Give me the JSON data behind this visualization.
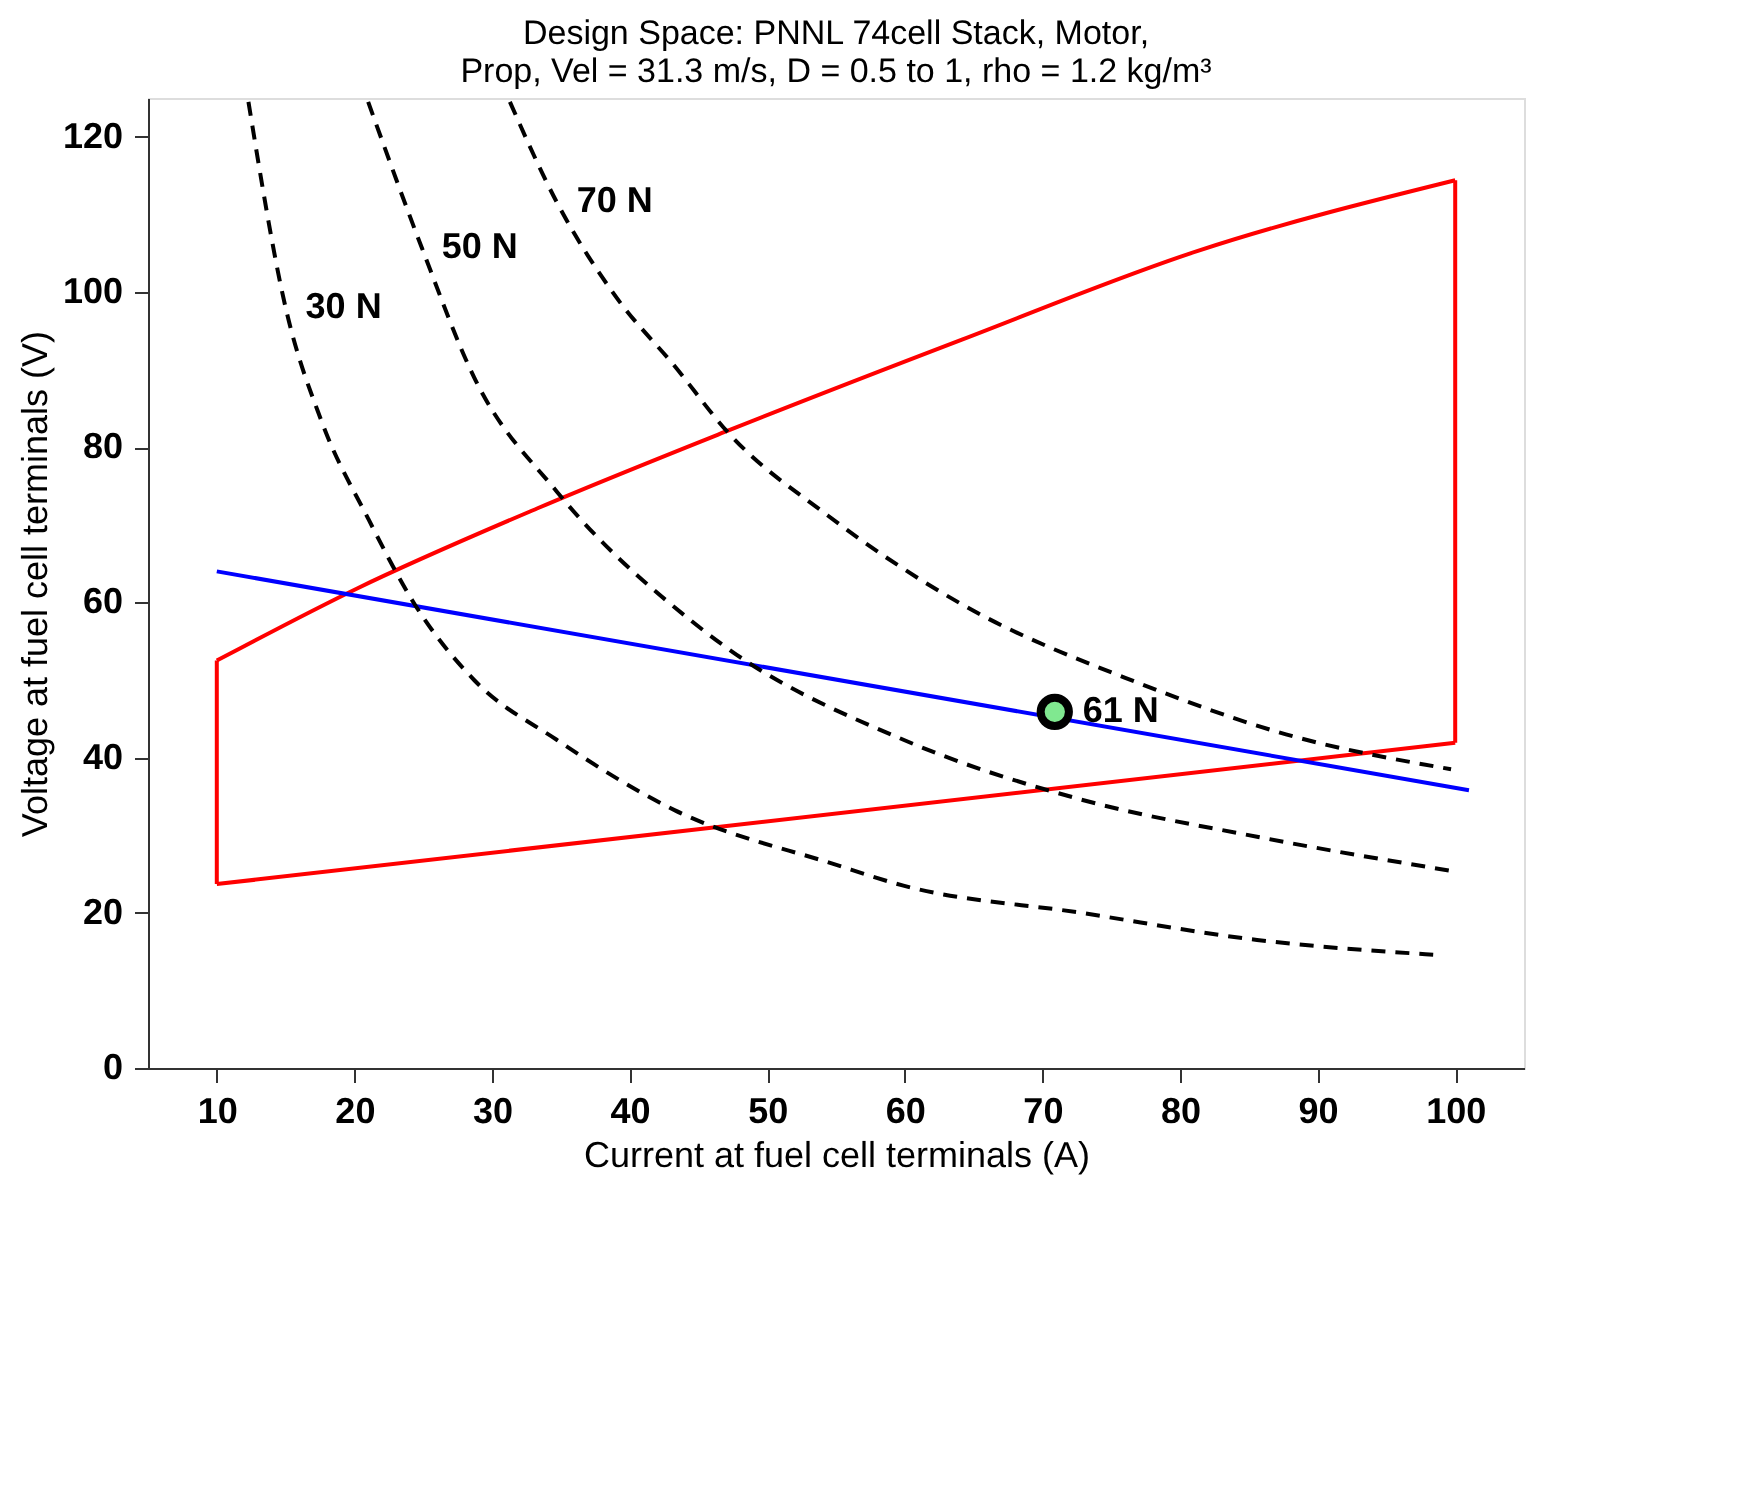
{
  "chart_data": {
    "type": "line",
    "title": [
      "Design Space: PNNL 74cell Stack, Motor,",
      "Prop, Vel = 31.3 m/s, D = 0.5 to 1, rho = 1.2 kg/m³"
    ],
    "xlabel": "Current at fuel cell terminals (A)",
    "ylabel": "Voltage at fuel cell terminals (V)",
    "xlim": [
      5,
      105
    ],
    "xticks": [
      10,
      20,
      30,
      40,
      50,
      60,
      70,
      80,
      90,
      100
    ],
    "ylim": [
      0,
      125
    ],
    "yticks": [
      0,
      20,
      40,
      60,
      80,
      100,
      120
    ],
    "grid": false,
    "series": [
      {
        "color": "#ff0000",
        "line_style": "solid",
        "x": [
          10,
          100
        ],
        "values": [
          23.7,
          41.9
        ]
      },
      {
        "color": "#ff0000",
        "line_style": "solid",
        "x": [
          100,
          100
        ],
        "values": [
          41.9,
          114.4
        ]
      },
      {
        "color": "#ff0000",
        "line_style": "solid",
        "x": [
          10,
          20.2,
          33.4,
          47.1,
          64.2,
          81.3,
          100
        ],
        "values": [
          52.5,
          61.8,
          72.2,
          82.1,
          93.9,
          105.3,
          114.4
        ]
      },
      {
        "color": "#ff0000",
        "line_style": "solid",
        "x": [
          10,
          10
        ],
        "values": [
          23.7,
          52.5
        ]
      },
      {
        "color": "#0000ff",
        "line_style": "solid",
        "x": [
          10,
          101
        ],
        "values": [
          64.0,
          35.8
        ]
      },
      {
        "name": "30 N",
        "color": "#000000",
        "line_style": "dashed",
        "x": [
          12.3,
          15.0,
          17.6,
          21.0,
          24.4,
          28.7,
          34.7,
          43.3,
          54.8,
          59.9,
          72.8,
          85.6,
          98.4
        ],
        "values": [
          124.5,
          98.0,
          83.4,
          70.8,
          59.7,
          50.0,
          42.3,
          33.2,
          26.3,
          23.5,
          20.0,
          16.5,
          14.6
        ]
      },
      {
        "name": "50 N",
        "color": "#000000",
        "line_style": "dashed",
        "x": [
          21.0,
          24.9,
          28.7,
          34.7,
          44.5,
          47.1,
          59.9,
          72.8,
          85.6,
          99.7
        ],
        "values": [
          124.5,
          105.7,
          89.0,
          74.3,
          57.6,
          54.1,
          42.3,
          34.6,
          29.8,
          25.4
        ]
      },
      {
        "name": "70 N",
        "color": "#000000",
        "line_style": "dashed",
        "x": [
          31.3,
          34.7,
          39.0,
          43.3,
          47.1,
          54.4,
          64.2,
          77.0,
          87.7,
          99.7
        ],
        "values": [
          124.5,
          111.6,
          99.4,
          90.4,
          82.0,
          71.2,
          59.7,
          49.6,
          43.0,
          38.5
        ]
      },
      {
        "name": "61 N",
        "type": "scatter",
        "marker": "circle",
        "color": "#80e890",
        "x": [
          70.9
        ],
        "values": [
          45.9
        ]
      }
    ]
  }
}
